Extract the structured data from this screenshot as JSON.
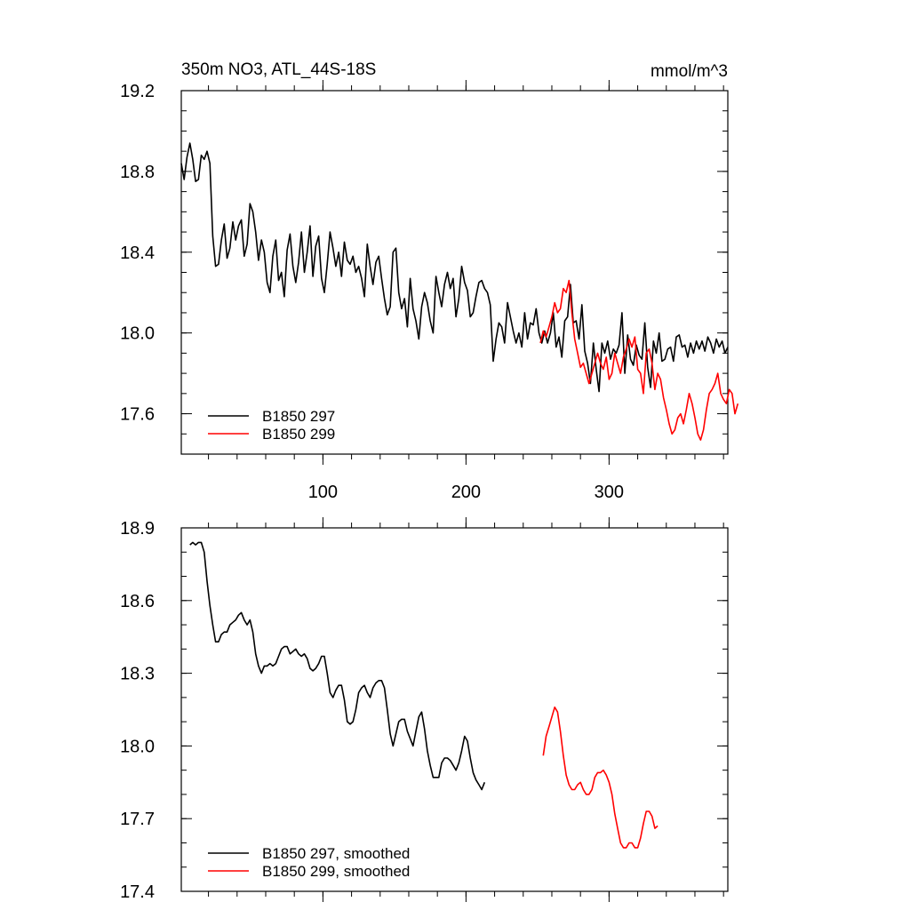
{
  "title_left": "350m NO3, ATL_44S-18S",
  "title_right": "mmol/m^3",
  "chart_data": [
    {
      "type": "line",
      "x_range": [
        1,
        383
      ],
      "x_ticks": [
        100,
        200,
        300
      ],
      "x_minor_step": 20,
      "ylim": [
        17.4,
        19.2
      ],
      "y_ticks": [
        17.6,
        18.0,
        18.4,
        18.8,
        19.2
      ],
      "y_tick_labels": [
        "17.6",
        "18.0",
        "18.4",
        "18.8",
        "19.2"
      ],
      "y_minor_step": 0.1,
      "legend_position": "bottom-left",
      "series": [
        {
          "name": "B1850 297",
          "color": "#000000",
          "x_start": 1,
          "x_step": 2,
          "values": [
            18.84,
            18.76,
            18.87,
            18.94,
            18.86,
            18.75,
            18.76,
            18.88,
            18.86,
            18.9,
            18.84,
            18.48,
            18.33,
            18.34,
            18.46,
            18.54,
            18.37,
            18.42,
            18.55,
            18.46,
            18.53,
            18.56,
            18.38,
            18.44,
            18.64,
            18.6,
            18.5,
            18.36,
            18.46,
            18.4,
            18.25,
            18.2,
            18.38,
            18.46,
            18.26,
            18.3,
            18.18,
            18.41,
            18.49,
            18.33,
            18.25,
            18.35,
            18.5,
            18.3,
            18.4,
            18.53,
            18.28,
            18.43,
            18.48,
            18.27,
            18.2,
            18.34,
            18.5,
            18.42,
            18.33,
            18.4,
            18.28,
            18.45,
            18.36,
            18.34,
            18.38,
            18.3,
            18.33,
            18.27,
            18.18,
            18.44,
            18.33,
            18.24,
            18.35,
            18.38,
            18.27,
            18.17,
            18.09,
            18.13,
            18.4,
            18.42,
            18.2,
            18.12,
            18.17,
            18.03,
            18.27,
            18.12,
            18.06,
            17.97,
            18.13,
            18.2,
            18.15,
            18.06,
            18.0,
            18.28,
            18.2,
            18.13,
            18.24,
            18.3,
            18.22,
            18.27,
            18.08,
            18.17,
            18.33,
            18.25,
            18.21,
            18.08,
            18.1,
            18.18,
            18.25,
            18.26,
            18.22,
            18.2,
            18.14,
            17.86,
            17.97,
            18.05,
            18.03,
            17.95,
            18.15,
            18.08,
            18.01,
            17.95,
            18.0,
            17.93,
            18.1,
            17.97,
            18.05,
            18.04,
            18.12,
            18.0,
            17.95,
            18.01,
            17.95,
            18.0,
            18.1,
            17.93,
            17.98,
            17.88,
            18.06,
            18.08,
            18.24,
            18.05,
            18.06,
            17.97,
            18.14,
            17.91,
            17.85,
            17.75,
            17.95,
            17.82,
            17.71,
            17.95,
            17.9,
            17.96,
            17.87,
            17.92,
            17.9,
            17.94,
            18.1,
            17.8,
            17.99,
            17.87,
            17.84,
            17.94,
            17.89,
            17.87,
            18.05,
            17.83,
            17.73,
            17.96,
            17.9,
            18.0,
            17.86,
            17.87,
            17.92,
            17.93,
            17.86,
            17.98,
            17.99,
            17.93,
            17.94,
            17.88,
            17.95,
            17.9,
            17.96,
            17.92,
            17.96,
            17.91,
            17.98,
            17.95,
            17.9,
            17.97,
            17.93,
            17.96,
            17.9,
            17.93
          ]
        },
        {
          "name": "B1850 299",
          "color": "#ff0000",
          "x_start": 252,
          "x_step": 2,
          "values": [
            17.95,
            18.01,
            17.98,
            18.03,
            18.08,
            18.15,
            18.1,
            18.12,
            18.22,
            18.2,
            18.26,
            18.1,
            17.97,
            17.9,
            17.83,
            17.85,
            17.8,
            17.75,
            17.8,
            17.85,
            17.9,
            17.85,
            17.82,
            17.88,
            17.77,
            17.8,
            17.9,
            17.85,
            17.8,
            17.88,
            17.92,
            17.97,
            17.93,
            17.98,
            17.82,
            17.8,
            17.7,
            17.9,
            17.92,
            17.85,
            17.72,
            17.8,
            17.77,
            17.68,
            17.62,
            17.55,
            17.5,
            17.52,
            17.58,
            17.6,
            17.55,
            17.62,
            17.7,
            17.65,
            17.58,
            17.5,
            17.47,
            17.52,
            17.62,
            17.7,
            17.72,
            17.75,
            17.8,
            17.7,
            17.67,
            17.65,
            17.72,
            17.7,
            17.6,
            17.65
          ]
        }
      ]
    },
    {
      "type": "line",
      "x_range": [
        1,
        383
      ],
      "x_ticks": [
        100,
        200,
        300
      ],
      "x_minor_step": 20,
      "ylim": [
        17.4,
        18.9
      ],
      "y_ticks": [
        17.4,
        17.7,
        18.0,
        18.3,
        18.6,
        18.9
      ],
      "y_tick_labels": [
        "17.4",
        "17.7",
        "18.0",
        "18.3",
        "18.6",
        "18.9"
      ],
      "y_minor_step": 0.1,
      "legend_position": "bottom-left",
      "series": [
        {
          "name": "B1850 297, smoothed",
          "color": "#000000",
          "x_start": 7,
          "x_step": 2,
          "values": [
            18.83,
            18.84,
            18.83,
            18.84,
            18.84,
            18.8,
            18.68,
            18.58,
            18.5,
            18.43,
            18.43,
            18.46,
            18.47,
            18.47,
            18.5,
            18.51,
            18.52,
            18.54,
            18.55,
            18.52,
            18.5,
            18.52,
            18.47,
            18.38,
            18.33,
            18.3,
            18.33,
            18.33,
            18.34,
            18.33,
            18.34,
            18.37,
            18.4,
            18.41,
            18.41,
            18.38,
            18.39,
            18.4,
            18.38,
            18.37,
            18.38,
            18.36,
            18.32,
            18.31,
            18.32,
            18.34,
            18.37,
            18.37,
            18.3,
            18.22,
            18.2,
            18.23,
            18.25,
            18.25,
            18.19,
            18.1,
            18.09,
            18.1,
            18.15,
            18.22,
            18.24,
            18.25,
            18.22,
            18.2,
            18.24,
            18.26,
            18.27,
            18.27,
            18.24,
            18.15,
            18.05,
            18.0,
            18.05,
            18.1,
            18.11,
            18.11,
            18.06,
            18.03,
            18.0,
            18.06,
            18.12,
            18.14,
            18.07,
            17.98,
            17.92,
            17.87,
            17.87,
            17.87,
            17.93,
            17.95,
            17.95,
            17.94,
            17.92,
            17.9,
            17.93,
            17.98,
            18.04,
            18.02,
            17.95,
            17.89,
            17.86,
            17.84,
            17.82,
            17.85
          ]
        },
        {
          "name": "B1850 299, smoothed",
          "color": "#ff0000",
          "x_start": 254,
          "x_step": 2,
          "values": [
            17.96,
            18.04,
            18.08,
            18.12,
            18.16,
            18.14,
            18.06,
            17.96,
            17.88,
            17.84,
            17.82,
            17.82,
            17.84,
            17.85,
            17.82,
            17.8,
            17.8,
            17.82,
            17.87,
            17.89,
            17.89,
            17.9,
            17.88,
            17.85,
            17.8,
            17.72,
            17.66,
            17.6,
            17.58,
            17.58,
            17.6,
            17.6,
            17.58,
            17.58,
            17.62,
            17.68,
            17.73,
            17.73,
            17.71,
            17.66,
            17.67
          ]
        }
      ]
    }
  ]
}
